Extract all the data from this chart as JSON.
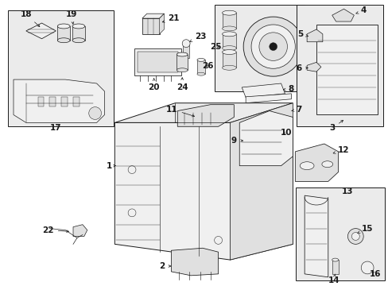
{
  "background_color": "#ffffff",
  "line_color": "#1a1a1a",
  "light_fill": "#f0f0f0",
  "mid_fill": "#e0e0e0",
  "box_fill": "#ebebeb",
  "fig_width": 4.89,
  "fig_height": 3.6,
  "dpi": 100
}
